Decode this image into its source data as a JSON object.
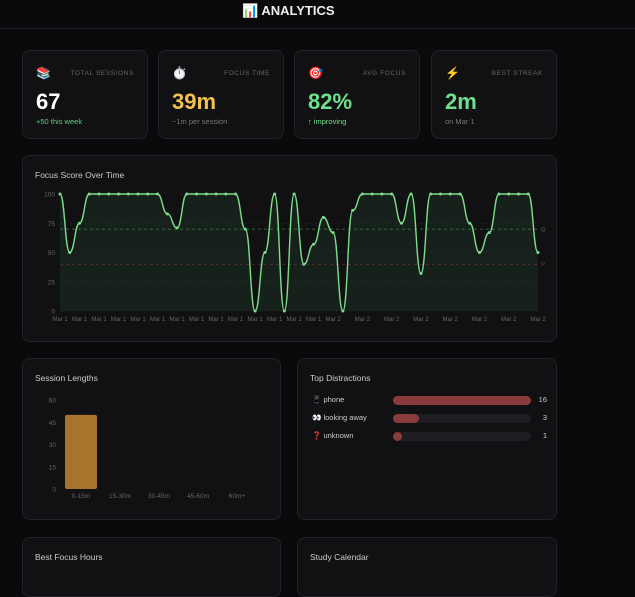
{
  "header": {
    "title": "📊 ANALYTICS"
  },
  "stats": [
    {
      "icon": "📚",
      "icon_name": "books-icon",
      "label": "TOTAL SESSIONS",
      "value": "67",
      "sub": "+50 this week",
      "color": "#ffffff",
      "sub_color": "#5fcf7a"
    },
    {
      "icon": "⏱️",
      "icon_name": "stopwatch-icon",
      "label": "FOCUS TIME",
      "value": "39m",
      "sub": "~1m per session",
      "color": "#f2c14e",
      "sub_color": "#777777"
    },
    {
      "icon": "🎯",
      "icon_name": "target-icon",
      "label": "AVG FOCUS",
      "value": "82%",
      "sub": "↑ improving",
      "color": "#6ee08a",
      "sub_color": "#6ee08a"
    },
    {
      "icon": "⚡",
      "icon_name": "lightning-icon",
      "label": "BEST STREAK",
      "value": "2m",
      "sub": "on Mar 1",
      "color": "#6ee08a",
      "sub_color": "#777777"
    }
  ],
  "chart_data": [
    {
      "type": "line",
      "title": "Focus Score Over Time",
      "ylim": [
        0,
        100
      ],
      "yticks": [
        0,
        25,
        50,
        75,
        100
      ],
      "grid": true,
      "color": "#7ddc8a",
      "values": [
        100,
        50,
        75,
        100,
        100,
        100,
        100,
        100,
        100,
        100,
        100,
        83,
        71,
        100,
        100,
        100,
        100,
        100,
        100,
        70,
        0,
        50,
        100,
        0,
        100,
        40,
        57,
        80,
        67,
        0,
        86,
        100,
        100,
        100,
        100,
        75,
        100,
        32,
        100,
        100,
        100,
        100,
        75,
        50,
        67,
        100,
        100,
        100,
        100,
        50
      ],
      "xlabels": [
        {
          "i": 0,
          "t": "Mar 1"
        },
        {
          "i": 2,
          "t": "Mar 1"
        },
        {
          "i": 4,
          "t": "Mar 1"
        },
        {
          "i": 6,
          "t": "Mar 1"
        },
        {
          "i": 8,
          "t": "Mar 1"
        },
        {
          "i": 10,
          "t": "Mar 1"
        },
        {
          "i": 12,
          "t": "Mar 1"
        },
        {
          "i": 14,
          "t": "Mar 1"
        },
        {
          "i": 16,
          "t": "Mar 1"
        },
        {
          "i": 18,
          "t": "Mar 1"
        },
        {
          "i": 20,
          "t": "Mar 1"
        },
        {
          "i": 22,
          "t": "Mar 1"
        },
        {
          "i": 24,
          "t": "Mar 1"
        },
        {
          "i": 26,
          "t": "Mar 1"
        },
        {
          "i": 28,
          "t": "Mar 2"
        },
        {
          "i": 31,
          "t": "Mar 2"
        },
        {
          "i": 34,
          "t": "Mar 2"
        },
        {
          "i": 37,
          "t": "Mar 2"
        },
        {
          "i": 40,
          "t": "Mar 2"
        },
        {
          "i": 43,
          "t": "Mar 2"
        },
        {
          "i": 46,
          "t": "Mar 2"
        },
        {
          "i": 49,
          "t": "Mar 2"
        }
      ],
      "reference_lines": [
        {
          "y": 70,
          "label": "G",
          "color": "#3f7a4a"
        },
        {
          "y": 40,
          "label": "P",
          "color": "#7a3535"
        }
      ]
    },
    {
      "type": "bar",
      "title": "Session Lengths",
      "categories": [
        "0-15m",
        "15-30m",
        "30-45m",
        "45-60m",
        "60m+"
      ],
      "values": [
        50,
        0,
        0,
        0,
        0
      ],
      "ylim": [
        0,
        60
      ],
      "yticks": [
        0,
        15,
        30,
        45,
        60
      ],
      "color": "#a8742c"
    }
  ],
  "distractions": {
    "title": "Top Distractions",
    "max": 16,
    "items": [
      {
        "icon": "📱",
        "label": "phone",
        "count": 16
      },
      {
        "icon": "👀",
        "label": "looking away",
        "count": 3
      },
      {
        "icon": "❓",
        "label": "unknown",
        "count": 1
      }
    ]
  },
  "bottom": {
    "focus_hours_title": "Best Focus Hours",
    "calendar_title": "Study Calendar"
  }
}
